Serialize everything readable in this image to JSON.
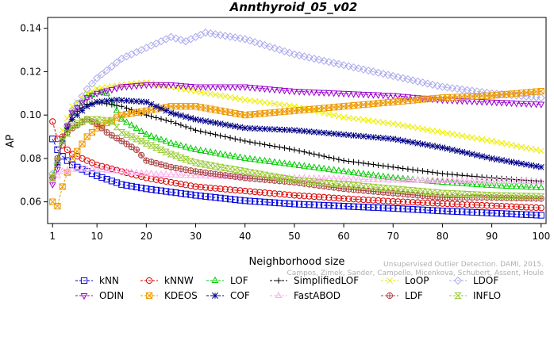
{
  "chart_data": {
    "type": "line",
    "title": "Annthyroid_05_v02",
    "xlabel": "Neighborhood size",
    "ylabel": "AP",
    "xlim": [
      0,
      101
    ],
    "ylim": [
      0.05,
      0.145
    ],
    "x_ticks": [
      1,
      10,
      20,
      30,
      40,
      50,
      60,
      70,
      80,
      90,
      100
    ],
    "y_ticks": [
      0.06,
      0.08,
      0.1,
      0.12,
      0.14
    ],
    "y_tick_labels": [
      "0.06",
      "0.08",
      "0.10",
      "0.12",
      "0.14"
    ],
    "grid": false,
    "legend_position": "bottom",
    "watermark": [
      "Unsupervised Outlier Detection. DAMI, 2015.",
      "Campos, Zimek, Sander, Campello, Micenkova, Schubert, Assent, Houle"
    ],
    "series": [
      {
        "name": "kNN",
        "color": "#0000dd",
        "marker": "square",
        "points": [
          [
            1,
            0.089
          ],
          [
            2,
            0.084
          ],
          [
            3,
            0.081
          ],
          [
            5,
            0.077
          ],
          [
            8,
            0.074
          ],
          [
            10,
            0.072
          ],
          [
            15,
            0.068
          ],
          [
            20,
            0.066
          ],
          [
            30,
            0.063
          ],
          [
            40,
            0.0605
          ],
          [
            50,
            0.059
          ],
          [
            60,
            0.058
          ],
          [
            70,
            0.057
          ],
          [
            80,
            0.0558
          ],
          [
            90,
            0.0548
          ],
          [
            100,
            0.0538
          ]
        ]
      },
      {
        "name": "kNNW",
        "color": "#dd0000",
        "marker": "circle",
        "points": [
          [
            1,
            0.097
          ],
          [
            2,
            0.089
          ],
          [
            3,
            0.086
          ],
          [
            5,
            0.082
          ],
          [
            8,
            0.079
          ],
          [
            10,
            0.077
          ],
          [
            15,
            0.074
          ],
          [
            20,
            0.071
          ],
          [
            30,
            0.067
          ],
          [
            40,
            0.065
          ],
          [
            50,
            0.063
          ],
          [
            60,
            0.0615
          ],
          [
            70,
            0.0602
          ],
          [
            80,
            0.0592
          ],
          [
            90,
            0.0582
          ],
          [
            100,
            0.0572
          ]
        ]
      },
      {
        "name": "LOF",
        "color": "#00cc00",
        "marker": "triangle",
        "points": [
          [
            1,
            0.072
          ],
          [
            2,
            0.078
          ],
          [
            3,
            0.088
          ],
          [
            5,
            0.101
          ],
          [
            8,
            0.108
          ],
          [
            10,
            0.111
          ],
          [
            12,
            0.11
          ],
          [
            15,
            0.098
          ],
          [
            20,
            0.091
          ],
          [
            25,
            0.087
          ],
          [
            30,
            0.084
          ],
          [
            40,
            0.08
          ],
          [
            50,
            0.077
          ],
          [
            60,
            0.074
          ],
          [
            70,
            0.071
          ],
          [
            80,
            0.069
          ],
          [
            90,
            0.0675
          ],
          [
            100,
            0.0665
          ]
        ]
      },
      {
        "name": "SimplifiedLOF",
        "color": "#000000",
        "marker": "plus",
        "points": [
          [
            1,
            0.071
          ],
          [
            2,
            0.078
          ],
          [
            3,
            0.089
          ],
          [
            5,
            0.1
          ],
          [
            8,
            0.105
          ],
          [
            10,
            0.106
          ],
          [
            15,
            0.104
          ],
          [
            20,
            0.1
          ],
          [
            25,
            0.097
          ],
          [
            30,
            0.093
          ],
          [
            40,
            0.088
          ],
          [
            50,
            0.084
          ],
          [
            60,
            0.079
          ],
          [
            70,
            0.076
          ],
          [
            80,
            0.073
          ],
          [
            90,
            0.071
          ],
          [
            100,
            0.0695
          ]
        ]
      },
      {
        "name": "LoOP",
        "color": "#eeee00",
        "marker": "cross",
        "points": [
          [
            1,
            0.073
          ],
          [
            2,
            0.08
          ],
          [
            3,
            0.093
          ],
          [
            5,
            0.104
          ],
          [
            8,
            0.11
          ],
          [
            10,
            0.112
          ],
          [
            15,
            0.114
          ],
          [
            20,
            0.115
          ],
          [
            25,
            0.113
          ],
          [
            30,
            0.111
          ],
          [
            40,
            0.107
          ],
          [
            50,
            0.104
          ],
          [
            60,
            0.099
          ],
          [
            70,
            0.096
          ],
          [
            80,
            0.092
          ],
          [
            90,
            0.088
          ],
          [
            100,
            0.0835
          ]
        ]
      },
      {
        "name": "LDOF",
        "color": "#aaaaee",
        "marker": "diamond",
        "points": [
          [
            1,
            0.073
          ],
          [
            2,
            0.078
          ],
          [
            3,
            0.088
          ],
          [
            5,
            0.102
          ],
          [
            8,
            0.112
          ],
          [
            10,
            0.117
          ],
          [
            15,
            0.126
          ],
          [
            20,
            0.131
          ],
          [
            25,
            0.136
          ],
          [
            28,
            0.134
          ],
          [
            32,
            0.138
          ],
          [
            40,
            0.135
          ],
          [
            50,
            0.128
          ],
          [
            60,
            0.123
          ],
          [
            70,
            0.118
          ],
          [
            80,
            0.113
          ],
          [
            90,
            0.11
          ],
          [
            100,
            0.108
          ]
        ]
      },
      {
        "name": "ODIN",
        "color": "#9900cc",
        "marker": "triangle-down",
        "points": [
          [
            1,
            0.068
          ],
          [
            2,
            0.075
          ],
          [
            3,
            0.089
          ],
          [
            5,
            0.101
          ],
          [
            8,
            0.108
          ],
          [
            10,
            0.11
          ],
          [
            15,
            0.113
          ],
          [
            20,
            0.114
          ],
          [
            25,
            0.114
          ],
          [
            30,
            0.113
          ],
          [
            40,
            0.113
          ],
          [
            50,
            0.111
          ],
          [
            60,
            0.11
          ],
          [
            70,
            0.109
          ],
          [
            80,
            0.107
          ],
          [
            90,
            0.106
          ],
          [
            100,
            0.105
          ]
        ]
      },
      {
        "name": "KDEOS",
        "color": "#ee9900",
        "marker": "box-x",
        "points": [
          [
            1,
            0.06
          ],
          [
            2,
            0.058
          ],
          [
            3,
            0.067
          ],
          [
            5,
            0.08
          ],
          [
            8,
            0.09
          ],
          [
            10,
            0.094
          ],
          [
            15,
            0.1
          ],
          [
            20,
            0.102
          ],
          [
            25,
            0.104
          ],
          [
            30,
            0.104
          ],
          [
            40,
            0.1
          ],
          [
            50,
            0.102
          ],
          [
            60,
            0.104
          ],
          [
            70,
            0.106
          ],
          [
            80,
            0.108
          ],
          [
            90,
            0.109
          ],
          [
            100,
            0.111
          ]
        ]
      },
      {
        "name": "COF",
        "color": "#000088",
        "marker": "asterisk",
        "points": [
          [
            1,
            0.071
          ],
          [
            2,
            0.078
          ],
          [
            3,
            0.088
          ],
          [
            5,
            0.098
          ],
          [
            8,
            0.104
          ],
          [
            10,
            0.106
          ],
          [
            14,
            0.107
          ],
          [
            20,
            0.106
          ],
          [
            25,
            0.101
          ],
          [
            30,
            0.098
          ],
          [
            40,
            0.094
          ],
          [
            50,
            0.093
          ],
          [
            60,
            0.091
          ],
          [
            70,
            0.089
          ],
          [
            80,
            0.085
          ],
          [
            90,
            0.08
          ],
          [
            100,
            0.076
          ]
        ]
      },
      {
        "name": "FastABOD",
        "color": "#ffaaee",
        "marker": "triangle",
        "points": [
          [
            1,
            0.07
          ],
          [
            2,
            0.072
          ],
          [
            3,
            0.074
          ],
          [
            5,
            0.075
          ],
          [
            8,
            0.075
          ],
          [
            10,
            0.075
          ],
          [
            15,
            0.074
          ],
          [
            20,
            0.073
          ],
          [
            30,
            0.072
          ],
          [
            40,
            0.0715
          ],
          [
            50,
            0.071
          ],
          [
            60,
            0.0705
          ],
          [
            70,
            0.07
          ],
          [
            80,
            0.0698
          ],
          [
            90,
            0.0695
          ],
          [
            100,
            0.0692
          ]
        ]
      },
      {
        "name": "LDF",
        "color": "#aa4444",
        "marker": "circle-plus",
        "points": [
          [
            1,
            0.071
          ],
          [
            2,
            0.08
          ],
          [
            3,
            0.09
          ],
          [
            5,
            0.094
          ],
          [
            8,
            0.098
          ],
          [
            10,
            0.096
          ],
          [
            12,
            0.092
          ],
          [
            15,
            0.088
          ],
          [
            18,
            0.084
          ],
          [
            20,
            0.079
          ],
          [
            25,
            0.076
          ],
          [
            30,
            0.074
          ],
          [
            40,
            0.071
          ],
          [
            50,
            0.069
          ],
          [
            60,
            0.066
          ],
          [
            70,
            0.064
          ],
          [
            80,
            0.062
          ],
          [
            90,
            0.062
          ],
          [
            100,
            0.0615
          ]
        ]
      },
      {
        "name": "INFLO",
        "color": "#99cc33",
        "marker": "hourglass",
        "points": [
          [
            1,
            0.071
          ],
          [
            2,
            0.079
          ],
          [
            3,
            0.088
          ],
          [
            5,
            0.095
          ],
          [
            8,
            0.098
          ],
          [
            10,
            0.098
          ],
          [
            13,
            0.097
          ],
          [
            15,
            0.092
          ],
          [
            20,
            0.087
          ],
          [
            25,
            0.082
          ],
          [
            30,
            0.078
          ],
          [
            40,
            0.074
          ],
          [
            50,
            0.07
          ],
          [
            60,
            0.068
          ],
          [
            70,
            0.066
          ],
          [
            80,
            0.064
          ],
          [
            90,
            0.063
          ],
          [
            100,
            0.0625
          ]
        ]
      }
    ]
  }
}
